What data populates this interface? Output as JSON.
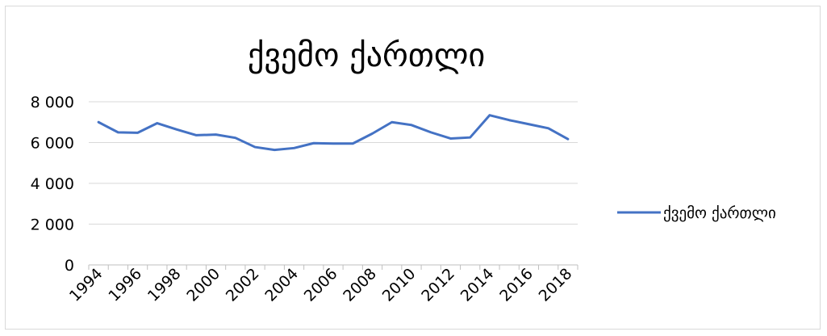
{
  "chart_data": {
    "type": "line",
    "title": "ქვემო ქართლი",
    "xlabel": "",
    "ylabel": "",
    "x": [
      1994,
      1995,
      1996,
      1997,
      1998,
      1999,
      2000,
      2001,
      2002,
      2003,
      2004,
      2005,
      2006,
      2007,
      2008,
      2009,
      2010,
      2011,
      2012,
      2013,
      2014,
      2015,
      2016,
      2017,
      2018
    ],
    "x_tick_labels": [
      "1994",
      "1996",
      "1998",
      "2000",
      "2002",
      "2004",
      "2006",
      "2008",
      "2010",
      "2012",
      "2014",
      "2016",
      "2018"
    ],
    "y_tick_labels": [
      "0",
      "2 000",
      "4 000",
      "6 000",
      "8 000"
    ],
    "ylim": [
      0,
      8000
    ],
    "grid": true,
    "legend_position": "right",
    "series": [
      {
        "name": "ქვემო ქართლი",
        "color": "#4472c4",
        "values": [
          7000,
          6500,
          6480,
          6950,
          6640,
          6360,
          6390,
          6230,
          5780,
          5640,
          5730,
          5970,
          5950,
          5950,
          6440,
          7000,
          6860,
          6500,
          6200,
          6250,
          7340,
          7100,
          6900,
          6700,
          6170
        ]
      }
    ]
  }
}
